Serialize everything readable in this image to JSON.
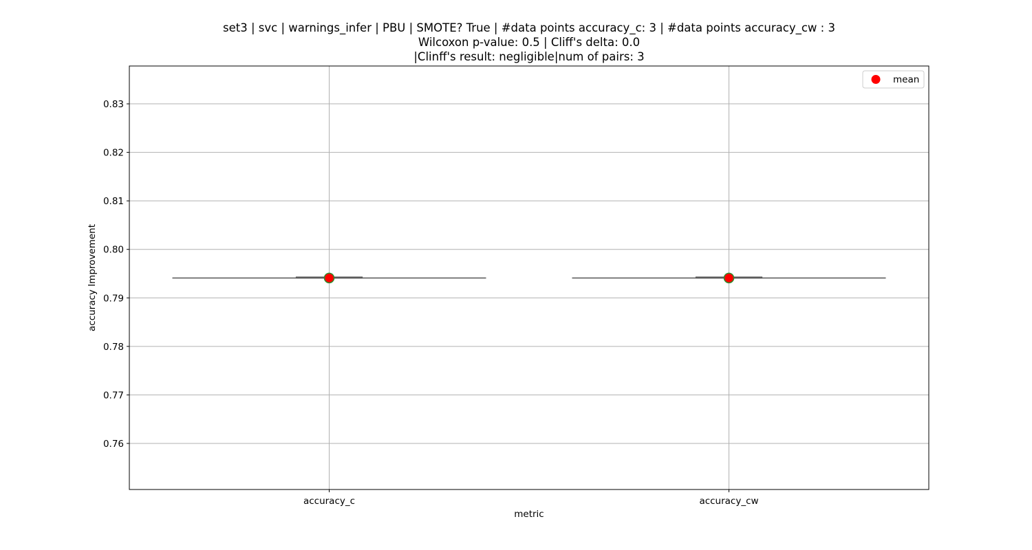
{
  "chart_data": {
    "type": "box",
    "title_lines": [
      "set3 | svc | warnings_infer | PBU | SMOTE? True | #data points accuracy_c: 3 | #data points accuracy_cw : 3",
      "Wilcoxon p-value: 0.5 | Cliff's delta: 0.0",
      "|Clinff's result: negligible|num of pairs: 3"
    ],
    "xlabel": "metric",
    "ylabel": "accuracy Improvement",
    "categories": [
      "accuracy_c",
      "accuracy_cw"
    ],
    "ylim": [
      0.7505,
      0.8378
    ],
    "yticks": [
      0.76,
      0.77,
      0.78,
      0.79,
      0.8,
      0.81,
      0.82,
      0.83
    ],
    "ytick_labels": [
      "0.76",
      "0.77",
      "0.78",
      "0.79",
      "0.80",
      "0.81",
      "0.82",
      "0.83"
    ],
    "grid": true,
    "legend": {
      "placement": "top-right",
      "entries": [
        {
          "label": "mean",
          "marker": "red-circle"
        }
      ]
    },
    "boxes": [
      {
        "category": "accuracy_c",
        "q1": 0.7941,
        "median": 0.7941,
        "q3": 0.7943,
        "whisker_low": 0.7941,
        "whisker_high": 0.7943,
        "mean": 0.7941
      },
      {
        "category": "accuracy_cw",
        "q1": 0.7941,
        "median": 0.7941,
        "q3": 0.7943,
        "whisker_low": 0.7941,
        "whisker_high": 0.7943,
        "mean": 0.7941
      }
    ],
    "colors": {
      "mean_fill": "#ff0000",
      "mean_edge": "#2e8b2e",
      "box_line": "#555555",
      "grid": "#b0b0b0"
    }
  }
}
